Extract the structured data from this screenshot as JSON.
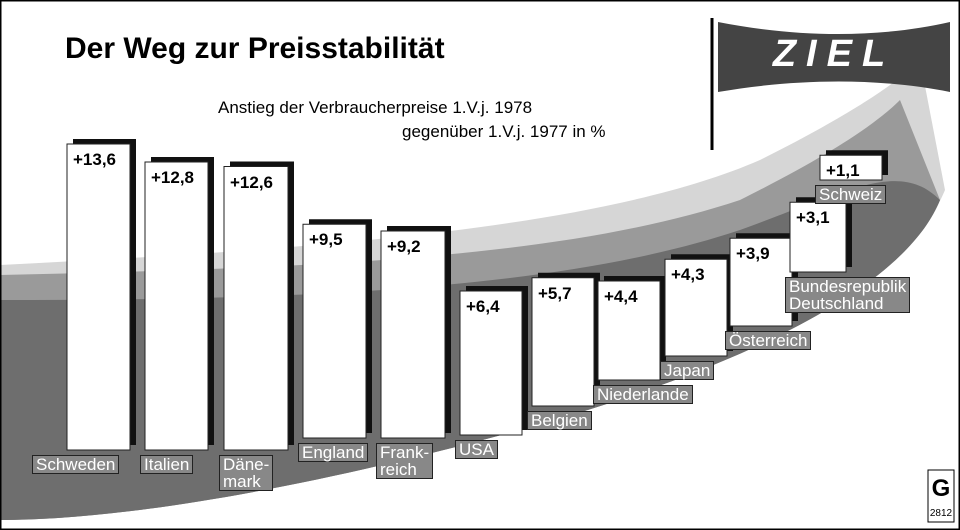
{
  "chart_data": {
    "type": "bar",
    "title": "Der Weg zur Preisstabilität",
    "subtitle": [
      "Anstieg der Verbraucherpreise 1.V.j. 1978",
      "gegenüber  1.V.j. 1977 in %"
    ],
    "banner": "ZIEL",
    "logo": "G",
    "code": "2812",
    "categories": [
      "Schweden",
      "Italien",
      "Däne-\nmark",
      "England",
      "Frank-\nreich",
      "USA",
      "Belgien",
      "Niederlande",
      "Japan",
      "Österreich",
      "Bundesrepublik\nDeutschland",
      "Schweiz"
    ],
    "values": [
      13.6,
      12.8,
      12.6,
      9.5,
      9.2,
      6.4,
      5.7,
      4.4,
      4.3,
      3.9,
      3.1,
      1.1
    ],
    "value_labels": [
      "+13,6",
      "+12,8",
      "+12,6",
      "+9,5",
      "+9,2",
      "+6,4",
      "+5,7",
      "+4,4",
      "+4,3",
      "+3,9",
      "+3,1",
      "+1,1"
    ],
    "color": "#ffffff"
  }
}
